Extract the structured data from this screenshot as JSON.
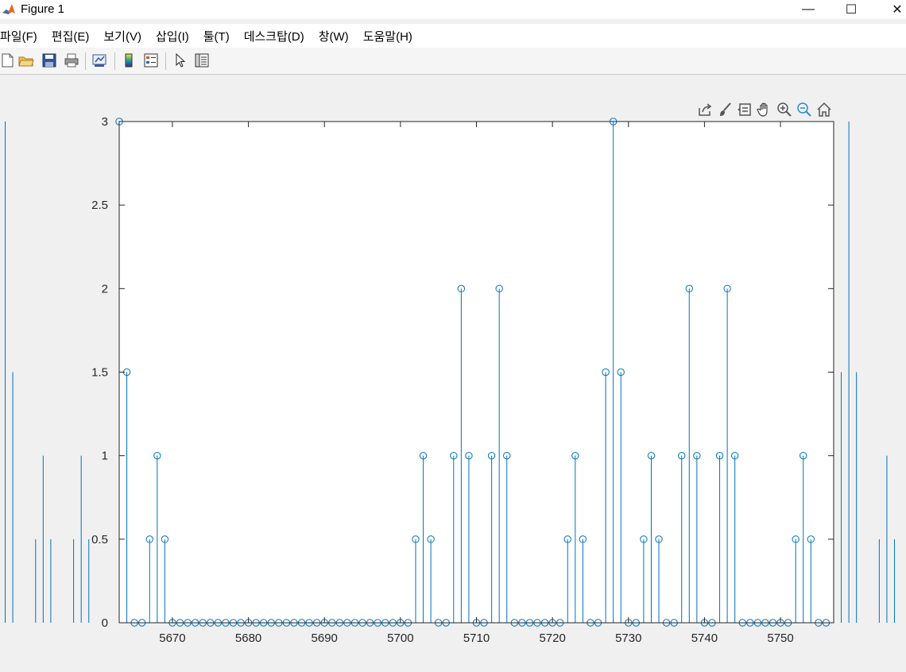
{
  "window": {
    "title": "Figure 1",
    "minimize_glyph": "—",
    "maximize_glyph": "☐",
    "close_glyph": "✕"
  },
  "menu": [
    "파일(F)",
    "편집(E)",
    "보기(V)",
    "삽입(I)",
    "툴(T)",
    "데스크탑(D)",
    "창(W)",
    "도움말(H)"
  ],
  "toolbar": {
    "icons": [
      "new-figure-icon",
      "open-file-icon",
      "save-icon",
      "print-icon",
      "link-plot-icon",
      "colorbar-icon",
      "legend-icon",
      "select-cursor-icon",
      "property-inspector-icon"
    ]
  },
  "axes_toolbar": {
    "icons": [
      "export-icon",
      "brush-icon",
      "data-tips-icon",
      "pan-icon",
      "zoom-in-icon",
      "zoom-out-icon",
      "home-icon"
    ]
  },
  "colors": {
    "series": "#0072bd",
    "axes_bg": "#ffffff",
    "figure_bg": "#f0f0f0",
    "axis_line": "#262626"
  },
  "chart_data": {
    "type": "stem",
    "title": "",
    "xlabel": "",
    "ylabel": "",
    "xlim": [
      5663,
      5757
    ],
    "ylim": [
      0,
      3
    ],
    "xticks": [
      5670,
      5680,
      5690,
      5700,
      5710,
      5720,
      5730,
      5740,
      5750
    ],
    "yticks": [
      0,
      0.5,
      1,
      1.5,
      2,
      2.5,
      3
    ],
    "ytick_labels": [
      "0",
      "0.5",
      "1",
      "1.5",
      "2",
      "2.5",
      "3"
    ],
    "grid": false,
    "marker": "circle",
    "series": [
      {
        "x": [
          5663,
          5664,
          5665,
          5666,
          5667,
          5668,
          5669,
          5670,
          5671,
          5672,
          5673,
          5674,
          5675,
          5676,
          5677,
          5678,
          5679,
          5680,
          5681,
          5682,
          5683,
          5684,
          5685,
          5686,
          5687,
          5688,
          5689,
          5690,
          5691,
          5692,
          5693,
          5694,
          5695,
          5696,
          5697,
          5698,
          5699,
          5700,
          5701,
          5702,
          5703,
          5704,
          5705,
          5706,
          5707,
          5708,
          5709,
          5710,
          5711,
          5712,
          5713,
          5714,
          5715,
          5716,
          5717,
          5718,
          5719,
          5720,
          5721,
          5722,
          5723,
          5724,
          5725,
          5726,
          5727,
          5728,
          5729,
          5730,
          5731,
          5732,
          5733,
          5734,
          5735,
          5736,
          5737,
          5738,
          5739,
          5740,
          5741,
          5742,
          5743,
          5744,
          5745,
          5746,
          5747,
          5748,
          5749,
          5750,
          5751,
          5752,
          5753,
          5754,
          5755,
          5756
        ],
        "values": [
          3,
          1.5,
          0,
          0,
          0.5,
          1,
          0.5,
          0,
          0,
          0,
          0,
          0,
          0,
          0,
          0,
          0,
          0,
          0,
          0,
          0,
          0,
          0,
          0,
          0,
          0,
          0,
          0,
          0,
          0,
          0,
          0,
          0,
          0,
          0,
          0,
          0,
          0,
          0,
          0,
          0.5,
          1,
          0.5,
          0,
          0,
          1,
          2,
          1,
          0,
          0,
          1,
          2,
          1,
          0,
          0,
          0,
          0,
          0,
          0,
          0,
          0.5,
          1,
          0.5,
          0,
          0,
          1.5,
          3,
          1.5,
          0,
          0,
          0.5,
          1,
          0.5,
          0,
          0,
          1,
          2,
          1,
          0,
          0,
          1,
          2,
          1,
          0,
          0,
          0,
          0,
          0,
          0,
          0,
          0.5,
          1,
          0.5,
          0,
          0
        ]
      }
    ],
    "clipped_stems_outside_axes": {
      "left": [
        {
          "x": 5648,
          "value": 3
        },
        {
          "x": 5649,
          "value": 1.5
        },
        {
          "x": 5652,
          "value": 0.5
        },
        {
          "x": 5653,
          "value": 1
        },
        {
          "x": 5654,
          "value": 0.5
        },
        {
          "x": 5657,
          "value": 0.5
        },
        {
          "x": 5658,
          "value": 1
        },
        {
          "x": 5659,
          "value": 0.5
        }
      ],
      "right": [
        {
          "x": 5758,
          "value": 1.5
        },
        {
          "x": 5759,
          "value": 3
        },
        {
          "x": 5760,
          "value": 1.5
        },
        {
          "x": 5763,
          "value": 0.5
        },
        {
          "x": 5764,
          "value": 1
        },
        {
          "x": 5765,
          "value": 0.5
        }
      ]
    }
  }
}
